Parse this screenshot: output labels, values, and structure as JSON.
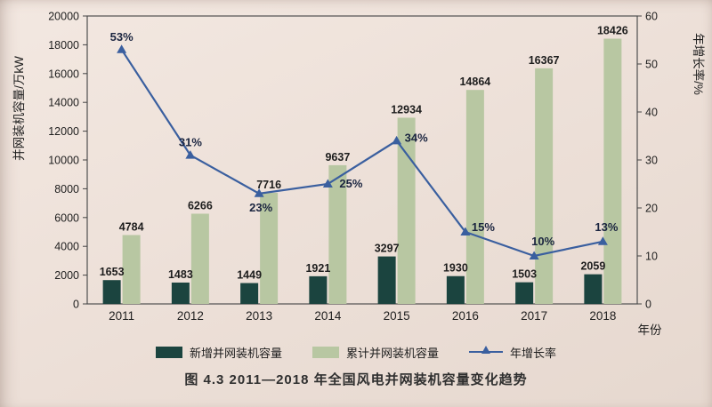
{
  "page": {
    "caption": "图 4.3  2011—2018 年全国风电并网装机容量变化趋势"
  },
  "chart_data": {
    "type": "combo",
    "categories": [
      "2011",
      "2012",
      "2013",
      "2014",
      "2015",
      "2016",
      "2017",
      "2018"
    ],
    "series": [
      {
        "name": "新增并网装机容量",
        "type": "bar",
        "axis": "left",
        "color": "#1b443f",
        "values": [
          1653,
          1483,
          1449,
          1921,
          3297,
          1930,
          1503,
          2059
        ]
      },
      {
        "name": "累计并网装机容量",
        "type": "bar",
        "axis": "left",
        "color": "#b8c7a2",
        "values": [
          4784,
          6266,
          7716,
          9637,
          12934,
          14864,
          16367,
          18426
        ]
      },
      {
        "name": "年增长率",
        "type": "line",
        "axis": "right",
        "color": "#3a5f9f",
        "values": [
          53,
          31,
          23,
          25,
          34,
          15,
          10,
          13
        ],
        "labels": [
          "53%",
          "31%",
          "23%",
          "25%",
          "34%",
          "15%",
          "10%",
          "13%"
        ]
      }
    ],
    "left_axis": {
      "label": "并网装机容量/万kW",
      "min": 0,
      "max": 20000,
      "step": 2000
    },
    "right_axis": {
      "label": "年增长率/%",
      "min": 0,
      "max": 60,
      "step": 10
    },
    "x_axis": {
      "label": "年份"
    },
    "grid": false,
    "legend_position": "bottom"
  }
}
